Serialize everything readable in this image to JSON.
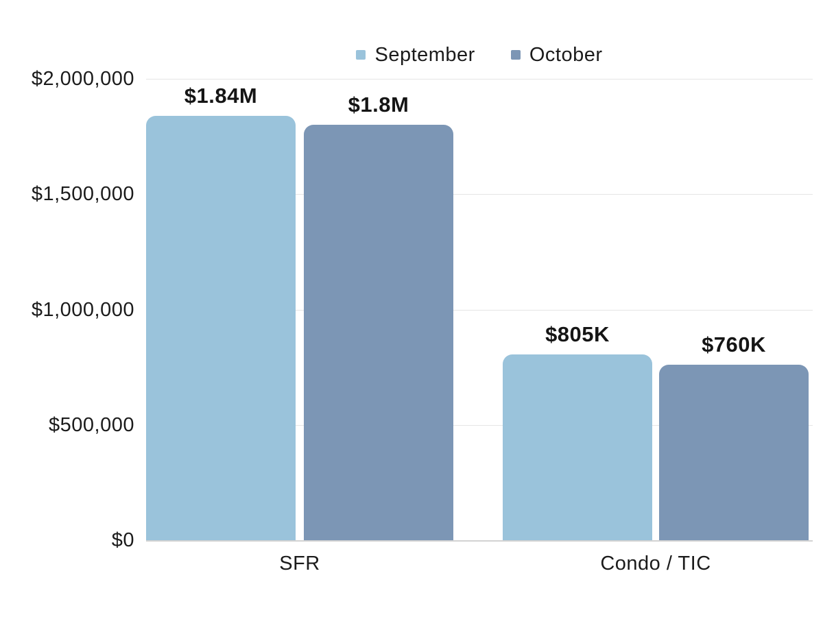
{
  "chart_data": {
    "type": "bar",
    "title": "",
    "categories": [
      "SFR",
      "Condo / TIC"
    ],
    "series": [
      {
        "name": "September",
        "color": "#9AC3DB",
        "values": [
          1840000,
          805000
        ],
        "labels": [
          "$1.84M",
          "$805K"
        ]
      },
      {
        "name": "October",
        "color": "#7C96B5",
        "values": [
          1800000,
          760000
        ],
        "labels": [
          "$1.8M",
          "$760K"
        ]
      }
    ],
    "ylim": [
      0,
      2000000
    ],
    "yticks": [
      {
        "value": 2000000,
        "label": "$2,000,000"
      },
      {
        "value": 1500000,
        "label": "$1,500,000"
      },
      {
        "value": 1000000,
        "label": "$1,000,000"
      },
      {
        "value": 500000,
        "label": "$500,000"
      },
      {
        "value": 0,
        "label": "$0"
      }
    ],
    "legend_position": "top",
    "grid": "horizontal"
  },
  "colors": {
    "background": "#ffffff",
    "grid": "#e5e5e5",
    "axis_line": "#d2d2d2",
    "text": "#1b1b1b"
  }
}
